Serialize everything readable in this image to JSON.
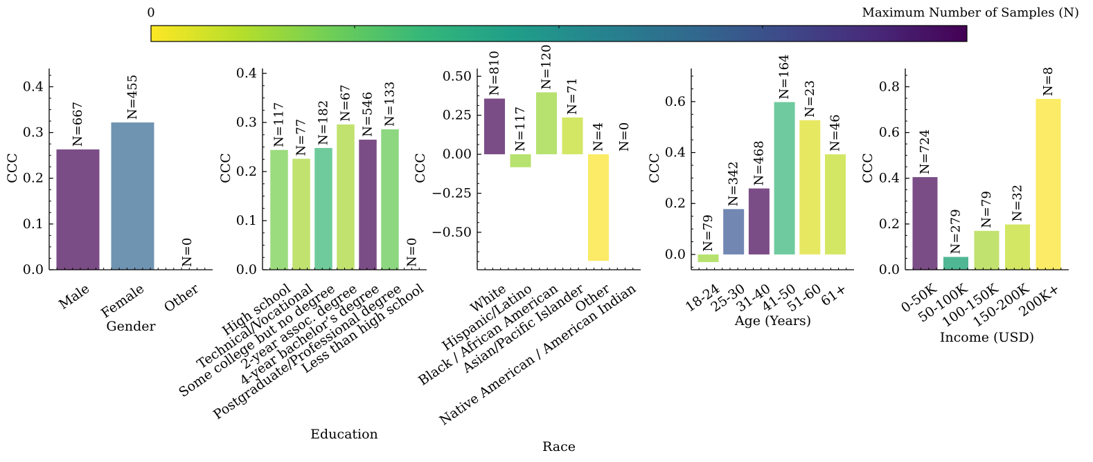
{
  "colorbar": {
    "min_label": "0",
    "title": "Maximum Number of Samples (N)",
    "colors": [
      "#fde725",
      "#b5de2b",
      "#6ece58",
      "#35b779",
      "#1f9e89",
      "#26828e",
      "#31688e",
      "#3e4989",
      "#482878",
      "#440154"
    ]
  },
  "chart_data": [
    {
      "type": "bar",
      "title": "",
      "xlabel": "Gender",
      "ylabel": "CCC",
      "ylim": [
        0,
        0.44
      ],
      "yticks": [
        0.0,
        0.1,
        0.2,
        0.3,
        0.4
      ],
      "ytick_labels": [
        "0.0",
        "0.1",
        "0.2",
        "0.3",
        "0.4"
      ],
      "categories": [
        "Male",
        "Female",
        "Other"
      ],
      "values": [
        0.263,
        0.322,
        null
      ],
      "n_labels": [
        "N=667",
        "N=455",
        "N=0"
      ],
      "colors": [
        "#7b4d87",
        "#6f94b2",
        "#ffffff"
      ]
    },
    {
      "type": "bar",
      "title": "",
      "xlabel": "Education",
      "ylabel": "CCC",
      "ylim": [
        0,
        0.41
      ],
      "yticks": [
        0.0,
        0.1,
        0.2,
        0.3,
        0.4
      ],
      "ytick_labels": [
        "0.0",
        "0.1",
        "0.2",
        "0.3",
        "0.4"
      ],
      "categories": [
        "High school",
        "Technical/Vocational",
        "Some college but no degree",
        "2-year assoc. degree",
        "4-year bachelor’s degree",
        "Postgraduate/Professional degree",
        "Less than high school"
      ],
      "values": [
        0.244,
        0.226,
        0.248,
        0.296,
        0.265,
        0.286,
        null
      ],
      "n_labels": [
        "N=117",
        "N=77",
        "N=182",
        "N=67",
        "N=546",
        "N=133",
        "N=0"
      ],
      "colors": [
        "#9bdc7e",
        "#c1e26f",
        "#6fcb9b",
        "#c1e26f",
        "#7b4d87",
        "#8ed781",
        "#ffffff"
      ]
    },
    {
      "type": "bar",
      "title": "",
      "xlabel": "Race",
      "ylabel": "CCC",
      "ylim": [
        -0.74,
        0.55
      ],
      "yticks": [
        -0.5,
        -0.25,
        0.0,
        0.25,
        0.5
      ],
      "ytick_labels": [
        "−0.50",
        "−0.25",
        "0.00",
        "0.25",
        "0.50"
      ],
      "categories": [
        "White",
        "Hispanic/Latino",
        "Black / African American",
        "Asian/Pacific Islander",
        "Other",
        "Native American / American Indian"
      ],
      "values": [
        0.357,
        -0.083,
        0.397,
        0.236,
        -0.683,
        null
      ],
      "n_labels": [
        "N=810",
        "N=117",
        "N=120",
        "N=71",
        "N=4",
        "N=0"
      ],
      "colors": [
        "#7b4d87",
        "#b7e26f",
        "#b7e26f",
        "#d3e765",
        "#fbeb66",
        "#ffffff"
      ]
    },
    {
      "type": "bar",
      "title": "",
      "xlabel": "Age (Years)",
      "ylabel": "CCC",
      "ylim": [
        -0.06,
        0.73
      ],
      "yticks": [
        0.0,
        0.2,
        0.4,
        0.6
      ],
      "ytick_labels": [
        "0.0",
        "0.2",
        "0.4",
        "0.6"
      ],
      "categories": [
        "18-24",
        "25-30",
        "31-40",
        "41-50",
        "51-60",
        "61+"
      ],
      "values": [
        -0.03,
        0.178,
        0.259,
        0.598,
        0.527,
        0.393
      ],
      "n_labels": [
        "N=79",
        "N=342",
        "N=468",
        "N=164",
        "N=23",
        "N=46"
      ],
      "colors": [
        "#b7e26f",
        "#7287b2",
        "#7b4d87",
        "#6fcb9f",
        "#e7e862",
        "#d3e765"
      ]
    },
    {
      "type": "bar",
      "title": "",
      "xlabel": "Income (USD)",
      "ylabel": "CCC",
      "ylim": [
        0,
        0.88
      ],
      "yticks": [
        0.0,
        0.2,
        0.4,
        0.6,
        0.8
      ],
      "ytick_labels": [
        "0.0",
        "0.2",
        "0.4",
        "0.6",
        "0.8"
      ],
      "categories": [
        "0-50K",
        "50-100K",
        "100-150K",
        "150-200K",
        "200K+"
      ],
      "values": [
        0.405,
        0.056,
        0.17,
        0.198,
        0.747
      ],
      "n_labels": [
        "N=724",
        "N=279",
        "N=79",
        "N=32",
        "N=8"
      ],
      "colors": [
        "#7b4d87",
        "#4fb794",
        "#c1e26f",
        "#d3e765",
        "#fbeb66"
      ]
    }
  ]
}
